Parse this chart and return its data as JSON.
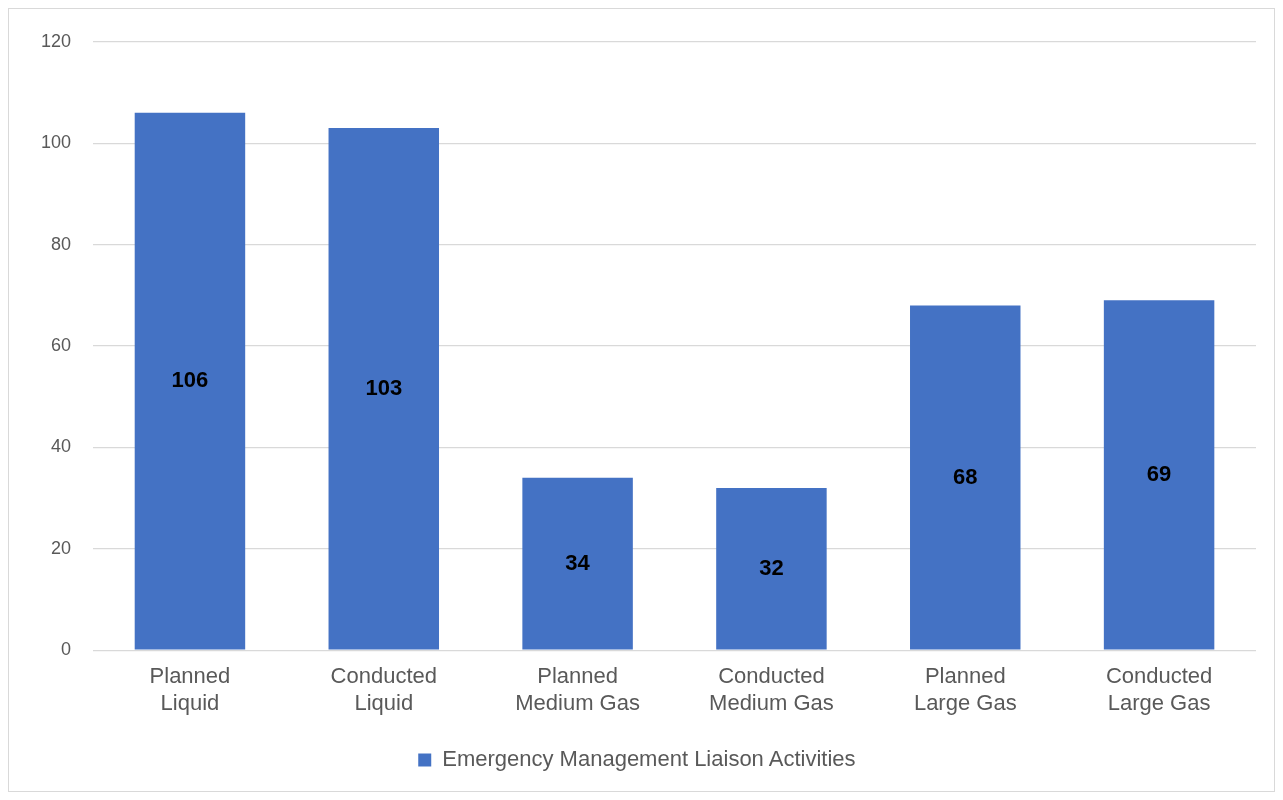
{
  "chart_data": {
    "type": "bar",
    "categories": [
      "Planned Liquid",
      "Conducted Liquid",
      "Planned Medium Gas",
      "Conducted Medium Gas",
      "Planned Large Gas",
      "Conducted Large Gas"
    ],
    "series": [
      {
        "name": "Emergency Management Liaison Activities",
        "color": "#4472c4",
        "values": [
          106,
          103,
          34,
          32,
          68,
          69
        ]
      }
    ],
    "ylim": [
      0,
      120
    ],
    "yticks": [
      0,
      20,
      40,
      60,
      80,
      100,
      120
    ],
    "grid": "y",
    "legend": "bottom",
    "data_labels": true
  }
}
